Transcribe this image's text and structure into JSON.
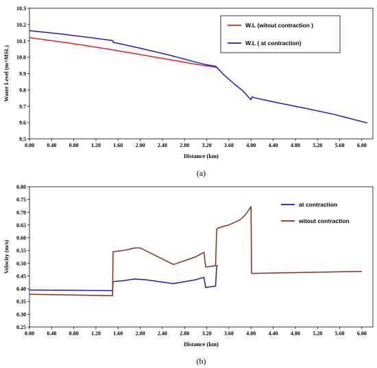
{
  "chart_data": [
    {
      "type": "line",
      "panel_label": "(a)",
      "xlabel": "Distance (km)",
      "ylabel": "Water Level (m+MSL)",
      "xlim": [
        0,
        6.2
      ],
      "ylim": [
        9.5,
        10.3
      ],
      "x_ticks": [
        "0.00",
        "0.40",
        "0.80",
        "1.20",
        "1.60",
        "2.00",
        "2.40",
        "2.80",
        "3.20",
        "3.60",
        "4.00",
        "4.40",
        "4.80",
        "5.20",
        "5.60",
        "6.00"
      ],
      "y_ticks": [
        "9.5",
        "9.6",
        "9.7",
        "9.8",
        "9.9",
        "10.0",
        "10.1",
        "10.2",
        "10.3"
      ],
      "grid": false,
      "legend_position": "top-right",
      "series": [
        {
          "name": "W.L (witout contraction )",
          "color": "#e8201a",
          "x": [
            0.0,
            0.5,
            1.0,
            1.5,
            2.0,
            2.5,
            3.0,
            3.4
          ],
          "y": [
            10.12,
            10.097,
            10.072,
            10.045,
            10.016,
            9.987,
            9.957,
            9.937
          ]
        },
        {
          "name": "W.L ( at contraction)",
          "color": "#1a1acc",
          "x": [
            0.0,
            0.5,
            1.0,
            1.5,
            1.52,
            1.56,
            2.0,
            2.5,
            3.0,
            3.2,
            3.36,
            3.4,
            3.42,
            3.5,
            3.7,
            3.85,
            3.95,
            4.0,
            4.02,
            4.05,
            4.5,
            5.0,
            5.5,
            6.1
          ],
          "y": [
            10.162,
            10.145,
            10.124,
            10.102,
            10.09,
            10.088,
            10.055,
            10.015,
            9.97,
            9.953,
            9.945,
            9.93,
            9.925,
            9.895,
            9.835,
            9.795,
            9.757,
            9.74,
            9.757,
            9.752,
            9.72,
            9.686,
            9.65,
            9.597
          ]
        }
      ]
    },
    {
      "type": "line",
      "panel_label": "(b)",
      "xlabel": "Distance (km)",
      "ylabel": "Velocity (m/s)",
      "xlim": [
        0,
        6.2
      ],
      "ylim": [
        0.25,
        0.8
      ],
      "x_ticks": [
        "0.00",
        "0.40",
        "0.80",
        "1.20",
        "1.60",
        "2.00",
        "2.40",
        "2.80",
        "3.20",
        "3.60",
        "4.00",
        "4.40",
        "4.80",
        "5.20",
        "5.60",
        "6.00"
      ],
      "y_ticks": [
        "0.25",
        "0.30",
        "0.35",
        "0.40",
        "0.45",
        "0.50",
        "0.55",
        "0.60",
        "0.65",
        "0.70",
        "0.75",
        "0.80"
      ],
      "grid": false,
      "legend_position": "top-right",
      "series": [
        {
          "name": "at contraction",
          "color": "#1a1acc",
          "x": [
            0.0,
            1.5,
            1.51,
            1.7,
            1.9,
            2.1,
            2.6,
            3.0,
            3.15,
            3.18,
            3.35,
            3.36,
            3.38,
            3.4
          ],
          "y": [
            0.395,
            0.393,
            0.428,
            0.432,
            0.438,
            0.435,
            0.42,
            0.435,
            0.445,
            0.405,
            0.41,
            0.41,
            0.49,
            0.49
          ]
        },
        {
          "name": "witout contraction",
          "color": "#8b2a15",
          "x": [
            0.0,
            1.5,
            1.51,
            1.7,
            1.9,
            2.0,
            2.6,
            3.0,
            3.15,
            3.18,
            3.35,
            3.36,
            3.38,
            3.4,
            3.6,
            3.8,
            3.9,
            4.0,
            4.01,
            4.5,
            5.0,
            5.5,
            6.0
          ],
          "y": [
            0.378,
            0.373,
            0.545,
            0.55,
            0.56,
            0.56,
            0.495,
            0.525,
            0.543,
            0.485,
            0.49,
            0.49,
            0.632,
            0.638,
            0.65,
            0.67,
            0.69,
            0.722,
            0.46,
            0.462,
            0.464,
            0.466,
            0.468
          ]
        }
      ]
    }
  ]
}
